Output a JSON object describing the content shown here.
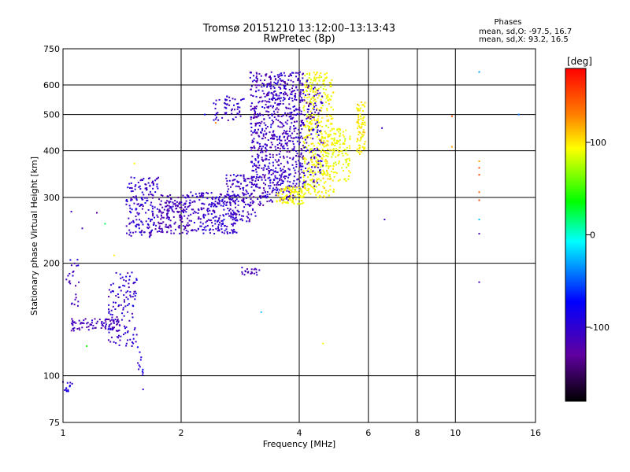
{
  "chart_data": {
    "type": "scatter",
    "title": "Tromsø 20151210 13:12:00–13:13:43",
    "subtitle": "RwPretec (8p)",
    "xlabel": "Frequency [MHz]",
    "ylabel": "Stationary phase Virtual Height [km]",
    "x_scale": "log",
    "y_scale": "log",
    "xlim": [
      1,
      16
    ],
    "ylim": [
      75,
      750
    ],
    "x_ticks": [
      1,
      2,
      4,
      6,
      8,
      10,
      16
    ],
    "x_tick_labels": [
      "1",
      "2",
      "4",
      "6",
      "8",
      "10",
      "16"
    ],
    "y_ticks": [
      75,
      100,
      200,
      300,
      400,
      500,
      600,
      750
    ],
    "y_tick_labels": [
      "75",
      "100",
      "200",
      "300",
      "400",
      "500",
      "600",
      "750"
    ],
    "grid": true,
    "stats": {
      "heading": "Phases",
      "line_o": "mean, sd,O: -97.5, 16.7",
      "line_x": "mean, sd,X:  93.2, 16.5"
    },
    "colorbar": {
      "unit_label": "[deg]",
      "range": [
        -180,
        180
      ],
      "ticks": [
        100,
        0,
        -100
      ],
      "tick_labels": [
        "100",
        "0",
        "-100"
      ]
    },
    "series": [
      {
        "name": "O",
        "mean_phase": -97.5,
        "sd": 16.7
      },
      {
        "name": "X",
        "mean_phase": 93.2,
        "sd": 16.5
      }
    ],
    "clusters": [
      {
        "f": [
          1.0,
          1.06
        ],
        "h": [
          88,
          97
        ],
        "n": 14,
        "phase": -90,
        "sd": 20
      },
      {
        "f": [
          1.02,
          1.1
        ],
        "h": [
          148,
          205
        ],
        "n": 25,
        "phase": -105,
        "sd": 18
      },
      {
        "f": [
          1.05,
          1.4
        ],
        "h": [
          132,
          142
        ],
        "n": 90,
        "phase": -110,
        "sd": 15
      },
      {
        "f": [
          1.3,
          1.55
        ],
        "h": [
          120,
          190
        ],
        "n": 120,
        "phase": -100,
        "sd": 18
      },
      {
        "f": [
          1.55,
          1.6
        ],
        "h": [
          100,
          120
        ],
        "n": 12,
        "phase": -95,
        "sd": 20
      },
      {
        "f": [
          1.45,
          1.75
        ],
        "h": [
          235,
          340
        ],
        "n": 170,
        "phase": -100,
        "sd": 18
      },
      {
        "f": [
          1.75,
          2.1
        ],
        "h": [
          240,
          305
        ],
        "n": 170,
        "phase": -110,
        "sd": 14
      },
      {
        "f": [
          2.1,
          2.8
        ],
        "h": [
          240,
          310
        ],
        "n": 230,
        "phase": -100,
        "sd": 16
      },
      {
        "f": [
          2.6,
          3.1
        ],
        "h": [
          258,
          345
        ],
        "n": 130,
        "phase": -105,
        "sd": 16
      },
      {
        "f": [
          2.4,
          2.9
        ],
        "h": [
          480,
          560
        ],
        "n": 55,
        "phase": -100,
        "sd": 16
      },
      {
        "f": [
          2.85,
          3.2
        ],
        "h": [
          185,
          195
        ],
        "n": 20,
        "phase": -110,
        "sd": 10
      },
      {
        "f": [
          3.0,
          3.45
        ],
        "h": [
          285,
          650
        ],
        "n": 380,
        "phase": -105,
        "sd": 20
      },
      {
        "f": [
          3.45,
          4.1
        ],
        "h": [
          295,
          650
        ],
        "n": 450,
        "phase": -105,
        "sd": 18
      },
      {
        "f": [
          3.5,
          4.1
        ],
        "h": [
          288,
          320
        ],
        "n": 90,
        "phase": 95,
        "sd": 10
      },
      {
        "f": [
          4.1,
          4.9
        ],
        "h": [
          300,
          650
        ],
        "n": 450,
        "phase": 95,
        "sd": 12
      },
      {
        "f": [
          4.1,
          4.6
        ],
        "h": [
          320,
          620
        ],
        "n": 110,
        "phase": -100,
        "sd": 18
      },
      {
        "f": [
          4.9,
          5.4
        ],
        "h": [
          330,
          460
        ],
        "n": 90,
        "phase": 92,
        "sd": 12
      },
      {
        "f": [
          5.6,
          5.9
        ],
        "h": [
          390,
          540
        ],
        "n": 80,
        "phase": 100,
        "sd": 10
      }
    ],
    "outliers": [
      {
        "f": 1.05,
        "h": 275,
        "phase": -110
      },
      {
        "f": 1.12,
        "h": 248,
        "phase": -110
      },
      {
        "f": 1.22,
        "h": 273,
        "phase": -120
      },
      {
        "f": 1.28,
        "h": 255,
        "phase": 20
      },
      {
        "f": 1.35,
        "h": 210,
        "phase": 100
      },
      {
        "f": 1.15,
        "h": 120,
        "phase": 40
      },
      {
        "f": 1.6,
        "h": 92,
        "phase": -100
      },
      {
        "f": 1.52,
        "h": 370,
        "phase": 95
      },
      {
        "f": 2.3,
        "h": 500,
        "phase": -80
      },
      {
        "f": 2.45,
        "h": 475,
        "phase": 130
      },
      {
        "f": 3.2,
        "h": 148,
        "phase": -20
      },
      {
        "f": 4.6,
        "h": 122,
        "phase": 95
      },
      {
        "f": 6.5,
        "h": 460,
        "phase": -105
      },
      {
        "f": 6.6,
        "h": 262,
        "phase": -105
      },
      {
        "f": 9.8,
        "h": 495,
        "phase": 150
      },
      {
        "f": 9.8,
        "h": 410,
        "phase": 120
      },
      {
        "f": 11.5,
        "h": 650,
        "phase": -30
      },
      {
        "f": 11.5,
        "h": 375,
        "phase": 120
      },
      {
        "f": 11.5,
        "h": 360,
        "phase": 150
      },
      {
        "f": 11.5,
        "h": 345,
        "phase": 155
      },
      {
        "f": 11.5,
        "h": 310,
        "phase": 140
      },
      {
        "f": 11.5,
        "h": 295,
        "phase": 150
      },
      {
        "f": 11.5,
        "h": 262,
        "phase": -20
      },
      {
        "f": 11.5,
        "h": 240,
        "phase": -110
      },
      {
        "f": 11.5,
        "h": 178,
        "phase": -110
      },
      {
        "f": 14.5,
        "h": 500,
        "phase": -40
      }
    ]
  }
}
